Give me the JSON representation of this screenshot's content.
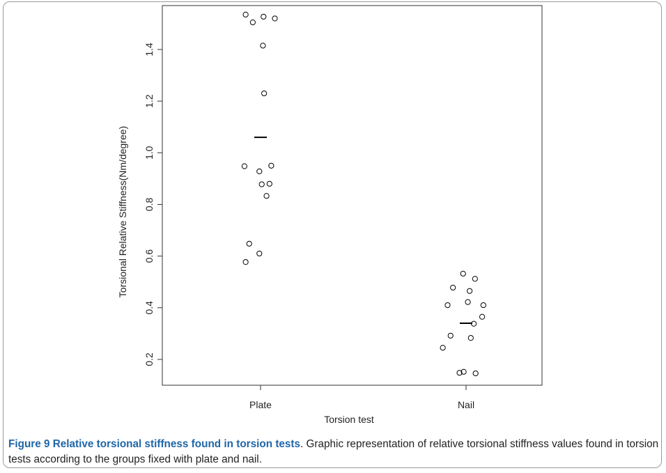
{
  "chart_data": {
    "type": "scatter",
    "title": "",
    "xlabel": "Torsion test",
    "ylabel": "Torsional Relative Stiffness(Nm/degree)",
    "categories": [
      "Plate",
      "Nail"
    ],
    "ylim": [
      0.1,
      1.57
    ],
    "yticks": [
      0.2,
      0.4,
      0.6,
      0.8,
      1.0,
      1.2,
      1.4
    ],
    "ytick_labels": [
      "0.2",
      "0.4",
      "0.6",
      "0.8",
      "1.0",
      "1.2",
      "1.4"
    ],
    "grid": false,
    "series": [
      {
        "category": "Plate",
        "mean": 1.06,
        "points": [
          {
            "jitter": -0.25,
            "y": 1.535
          },
          {
            "jitter": -0.13,
            "y": 1.505
          },
          {
            "jitter": 0.05,
            "y": 1.527
          },
          {
            "jitter": 0.24,
            "y": 1.52
          },
          {
            "jitter": 0.04,
            "y": 1.415
          },
          {
            "jitter": 0.06,
            "y": 1.23
          },
          {
            "jitter": -0.27,
            "y": 0.948
          },
          {
            "jitter": -0.02,
            "y": 0.928
          },
          {
            "jitter": 0.18,
            "y": 0.95
          },
          {
            "jitter": 0.02,
            "y": 0.878
          },
          {
            "jitter": 0.15,
            "y": 0.88
          },
          {
            "jitter": 0.1,
            "y": 0.833
          },
          {
            "jitter": -0.19,
            "y": 0.648
          },
          {
            "jitter": -0.25,
            "y": 0.577
          },
          {
            "jitter": -0.02,
            "y": 0.61
          }
        ]
      },
      {
        "category": "Nail",
        "mean": 0.34,
        "points": [
          {
            "jitter": -0.05,
            "y": 0.532
          },
          {
            "jitter": -0.22,
            "y": 0.478
          },
          {
            "jitter": 0.15,
            "y": 0.512
          },
          {
            "jitter": 0.06,
            "y": 0.465
          },
          {
            "jitter": -0.31,
            "y": 0.41
          },
          {
            "jitter": 0.03,
            "y": 0.422
          },
          {
            "jitter": 0.29,
            "y": 0.41
          },
          {
            "jitter": 0.27,
            "y": 0.365
          },
          {
            "jitter": 0.13,
            "y": 0.338
          },
          {
            "jitter": -0.26,
            "y": 0.292
          },
          {
            "jitter": 0.08,
            "y": 0.283
          },
          {
            "jitter": -0.39,
            "y": 0.245
          },
          {
            "jitter": -0.11,
            "y": 0.148
          },
          {
            "jitter": -0.04,
            "y": 0.152
          },
          {
            "jitter": 0.16,
            "y": 0.146
          }
        ]
      }
    ]
  },
  "caption": {
    "lead": "Figure 9 Relative torsional stiffness found in torsion tests",
    "text": ". Graphic representation of relative torsional stiffness values found in torsion tests according to the groups fixed with plate and nail."
  },
  "colors": {
    "caption_lead": "#1f66a8",
    "points": "#000000",
    "axis": "#333333"
  }
}
